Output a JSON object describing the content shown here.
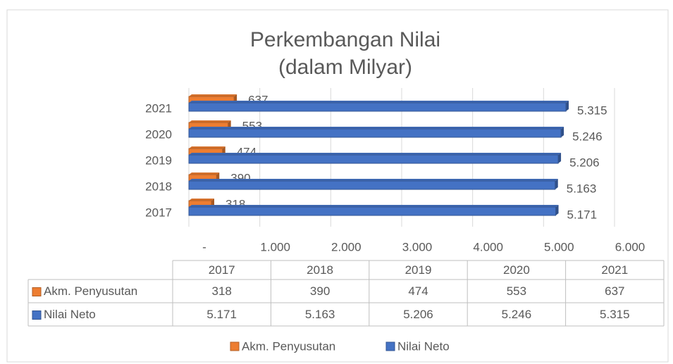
{
  "chart_data": {
    "type": "bar",
    "orientation": "horizontal",
    "title": "Perkembangan Nilai",
    "subtitle": "(dalam Milyar)",
    "categories": [
      "2017",
      "2018",
      "2019",
      "2020",
      "2021"
    ],
    "series": [
      {
        "name": "Akm. Penyusutan",
        "color": "#ed7d31",
        "values": [
          318,
          390,
          474,
          553,
          637
        ]
      },
      {
        "name": "Nilai Neto",
        "color": "#4472c4",
        "values": [
          5171,
          5163,
          5206,
          5246,
          5315
        ],
        "value_labels": [
          "5.171",
          "5.163",
          "5.206",
          "5.246",
          "5.315"
        ]
      }
    ],
    "xlim": [
      0,
      6000
    ],
    "xticks": [
      {
        "value": 0,
        "label": "-"
      },
      {
        "value": 1000,
        "label": "1.000"
      },
      {
        "value": 2000,
        "label": "2.000"
      },
      {
        "value": 3000,
        "label": "3.000"
      },
      {
        "value": 4000,
        "label": "4.000"
      },
      {
        "value": 5000,
        "label": "5.000"
      },
      {
        "value": 6000,
        "label": "6.000"
      }
    ],
    "grid": true,
    "legend": "bottom",
    "data_table": true
  }
}
